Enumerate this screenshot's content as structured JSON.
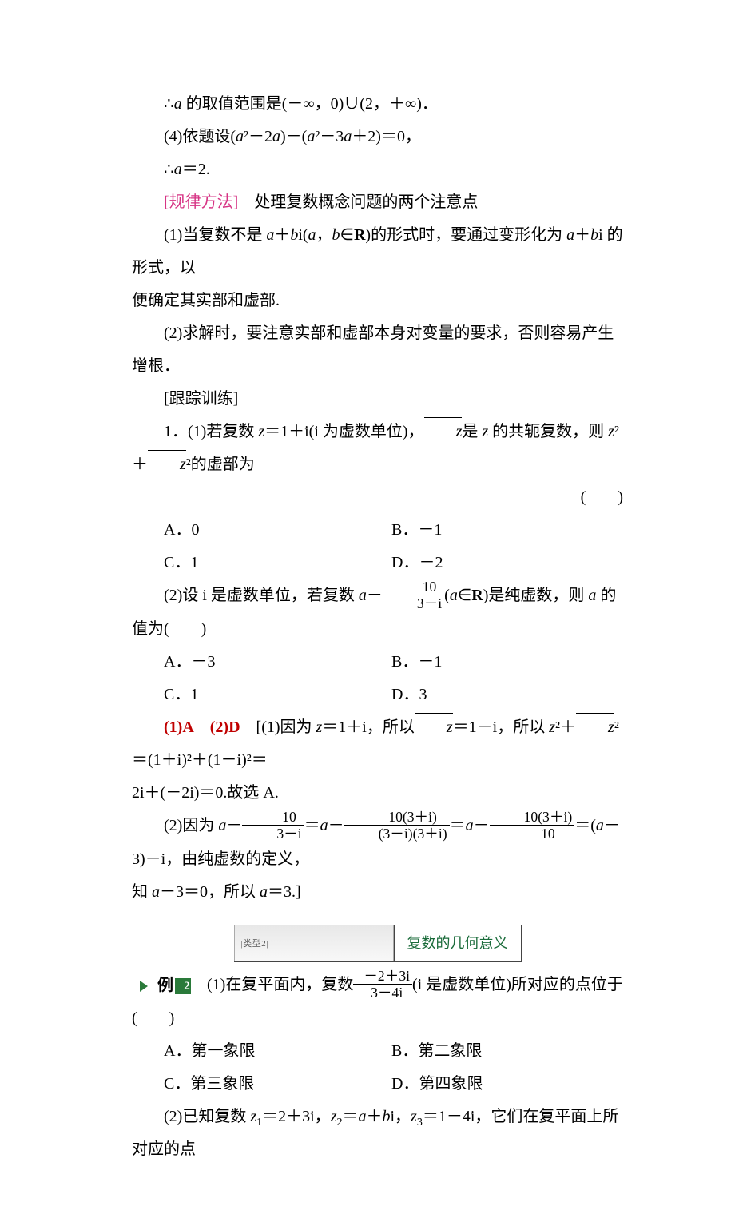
{
  "line1_pre": "∴",
  "line1_var": "a",
  "line1_post": " 的取值范围是(－∞，0)∪(2，＋∞)．",
  "line2_pre": "(4)依题设(",
  "line2_a1": "a",
  "line2_mid1": "²－2",
  "line2_a2": "a",
  "line2_mid2": ")－(",
  "line2_a3": "a",
  "line2_mid3": "²－3",
  "line2_a4": "a",
  "line2_post": "＋2)＝0，",
  "line3_pre": "∴",
  "line3_var": "a",
  "line3_post": "＝2.",
  "rule_label": "[规律方法]",
  "rule_body": "　处理复数概念问题的两个注意点",
  "rule1_pre": "(1)当复数不是 ",
  "rule1_a1": "a",
  "rule1_plus1": "＋",
  "rule1_b1": "b",
  "rule1_i1": "i(",
  "rule1_a2": "a",
  "rule1_comma": "，",
  "rule1_b2": "b",
  "rule1_in": "∈",
  "rule1_R": "R",
  "rule1_mid": ")的形式时，要通过变形化为 ",
  "rule1_a3": "a",
  "rule1_plus2": "＋",
  "rule1_b3": "b",
  "rule1_i2": "i 的形式，以",
  "rule1_line2": "便确定其实部和虚部.",
  "rule2": "(2)求解时，要注意实部和虚部本身对变量的要求，否则容易产生增根．",
  "follow_label": "[跟踪训练]",
  "q1_pre": "1．(1)若复数 ",
  "q1_z": "z",
  "q1_eq": "＝1＋i(i 为虚数单位)，",
  "q1_zbar": "z",
  "q1_mid": "是 ",
  "q1_z2": "z",
  "q1_mid2": " 的共轭复数，则 ",
  "q1_z3": "z",
  "q1_sup2": "²＋",
  "q1_zbar2": "z",
  "q1_post": "²的虚部为",
  "q1_paren": "(　　)",
  "q1_optA": "A．0",
  "q1_optB": "B．－1",
  "q1_optC": "C．1",
  "q1_optD": "D．－2",
  "q2_pre": "(2)设 i 是虚数单位，若复数 ",
  "q2_a": "a",
  "q2_minus": "－",
  "q2_frac_num": "10",
  "q2_frac_den": "3－i",
  "q2_paren_a": "(",
  "q2_a2": "a",
  "q2_in": "∈",
  "q2_R": "R",
  "q2_post": ")是纯虚数，则 ",
  "q2_a3": "a",
  "q2_post2": " 的值为(　　)",
  "q2_optA": "A．－3",
  "q2_optB": "B．－1",
  "q2_optC": "C．1",
  "q2_optD": "D．3",
  "ans1": "(1)A",
  "ans2": "(2)D",
  "sol1_pre": "　[(1)因为 ",
  "sol1_z": "z",
  "sol1_eq1": "＝1＋i，所以",
  "sol1_zbar": "z",
  "sol1_eq2": "＝1－i，所以 ",
  "sol1_z2": "z",
  "sol1_sq": "²＋",
  "sol1_zbar2": "z",
  "sol1_eq3": "²＝(1＋i)²＋(1－i)²＝",
  "sol1_line2": "2i＋(－2i)＝0.故选 A.",
  "sol2_pre": "(2)因为 ",
  "sol2_a1": "a",
  "sol2_m1": "－",
  "sol2_f1_num": "10",
  "sol2_f1_den": "3－i",
  "sol2_eq1": "＝",
  "sol2_a2": "a",
  "sol2_m2": "－",
  "sol2_f2_num": "10(3＋i)",
  "sol2_f2_den": "(3－i)(3＋i)",
  "sol2_eq2": "＝",
  "sol2_a3": "a",
  "sol2_m3": "－",
  "sol2_f3_num": "10(3＋i)",
  "sol2_f3_den": "10",
  "sol2_eq3": "＝(",
  "sol2_a4": "a",
  "sol2_post": "－3)－i，由纯虚数的定义，",
  "sol2_line2_pre": "知 ",
  "sol2_line2_a": "a",
  "sol2_line2_mid": "－3＝0，所以 ",
  "sol2_line2_a2": "a",
  "sol2_line2_post": "＝3.]",
  "banner_tab": "|类型2|",
  "banner_title": "复数的几何意义",
  "ex_label": "例",
  "ex_num": "2",
  "ex1_pre": "　(1)在复平面内，复数",
  "ex1_frac_num": "－2＋3i",
  "ex1_frac_den": "3－4i",
  "ex1_post": "(i 是虚数单位)所对应的点位于(　　)",
  "ex1_optA": "A．第一象限",
  "ex1_optB": "B．第二象限",
  "ex1_optC": "C．第三象限",
  "ex1_optD": "D．第四象限",
  "ex2_pre": "(2)已知复数 ",
  "ex2_z1": "z",
  "ex2_s1": "1",
  "ex2_v1": "＝2＋3i，",
  "ex2_z2": "z",
  "ex2_s2": "2",
  "ex2_v2": "＝",
  "ex2_a": "a",
  "ex2_plus": "＋",
  "ex2_b": "b",
  "ex2_i": "i，",
  "ex2_z3": "z",
  "ex2_s3": "3",
  "ex2_v3": "＝1－4i，它们在复平面上所对应的点",
  "colors": {
    "magenta": "#d63384",
    "red": "#c00000",
    "green": "#1a6b3a",
    "badge_green": "#2a7a3a"
  }
}
